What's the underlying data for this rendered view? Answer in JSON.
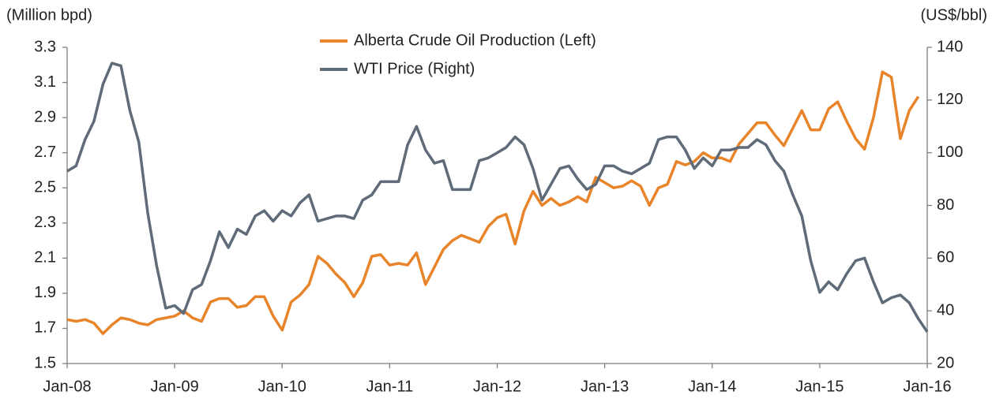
{
  "chart_data": {
    "type": "line",
    "y_label": "(Million bpd)",
    "y2_label": "(US$/bbl)",
    "categories": [
      "Jan-08",
      null,
      null,
      null,
      null,
      null,
      null,
      null,
      null,
      null,
      null,
      null,
      "Jan-09",
      null,
      null,
      null,
      null,
      null,
      null,
      null,
      null,
      null,
      null,
      null,
      "Jan-10",
      null,
      null,
      null,
      null,
      null,
      null,
      null,
      null,
      null,
      null,
      null,
      "Jan-11",
      null,
      null,
      null,
      null,
      null,
      null,
      null,
      null,
      null,
      null,
      null,
      "Jan-12",
      null,
      null,
      null,
      null,
      null,
      null,
      null,
      null,
      null,
      null,
      null,
      "Jan-13",
      null,
      null,
      null,
      null,
      null,
      null,
      null,
      null,
      null,
      null,
      null,
      "Jan-14",
      null,
      null,
      null,
      null,
      null,
      null,
      null,
      null,
      null,
      null,
      null,
      "Jan-15",
      null,
      null,
      null,
      null,
      null,
      null,
      null,
      null,
      null,
      null,
      null,
      "Jan-16"
    ],
    "series": [
      {
        "name": "Alberta Crude Oil Production (Left)",
        "color": "#e8842a",
        "axis": "y",
        "values": [
          1.75,
          1.74,
          1.75,
          1.73,
          1.67,
          1.72,
          1.76,
          1.75,
          1.73,
          1.72,
          1.75,
          1.76,
          1.77,
          1.8,
          1.76,
          1.74,
          1.85,
          1.87,
          1.87,
          1.82,
          1.83,
          1.88,
          1.88,
          1.77,
          1.69,
          1.85,
          1.89,
          1.95,
          2.11,
          2.07,
          2.01,
          1.96,
          1.88,
          1.96,
          2.11,
          2.12,
          2.06,
          2.07,
          2.06,
          2.13,
          1.95,
          2.05,
          2.15,
          2.2,
          2.23,
          2.21,
          2.19,
          2.28,
          2.33,
          2.35,
          2.18,
          2.37,
          2.48,
          2.4,
          2.44,
          2.4,
          2.42,
          2.45,
          2.42,
          2.56,
          2.53,
          2.5,
          2.51,
          2.54,
          2.51,
          2.4,
          2.5,
          2.52,
          2.65,
          2.63,
          2.65,
          2.7,
          2.67,
          2.67,
          2.65,
          2.75,
          2.81,
          2.87,
          2.87,
          2.8,
          2.74,
          2.84,
          2.94,
          2.83,
          2.83,
          2.95,
          2.99,
          2.88,
          2.78,
          2.72,
          2.9,
          3.16,
          3.13,
          2.78,
          2.94,
          3.02,
          null
        ]
      },
      {
        "name": "WTI Price (Right)",
        "color": "#5f6b78",
        "axis": "y2",
        "values": [
          93,
          95,
          105,
          112,
          126,
          134,
          133,
          116,
          104,
          77,
          57,
          41,
          42,
          39,
          48,
          50,
          59,
          70,
          64,
          71,
          69,
          76,
          78,
          74,
          78,
          76,
          81,
          84,
          74,
          75,
          76,
          76,
          75,
          82,
          84,
          89,
          89,
          89,
          103,
          110,
          101,
          96,
          97,
          86,
          86,
          86,
          97,
          98,
          100,
          102,
          106,
          103,
          94,
          82,
          88,
          94,
          95,
          90,
          86,
          88,
          95,
          95,
          93,
          92,
          94,
          96,
          105,
          106,
          106,
          101,
          94,
          98,
          95,
          101,
          101,
          102,
          102,
          105,
          103,
          97,
          93,
          84,
          76,
          59,
          47,
          51,
          48,
          54,
          59,
          60,
          51,
          43,
          45,
          46,
          43,
          37,
          32
        ]
      }
    ],
    "ylim": [
      1.5,
      3.3
    ],
    "yticks": [
      1.5,
      1.7,
      1.9,
      2.1,
      2.3,
      2.5,
      2.7,
      2.9,
      3.1,
      3.3
    ],
    "y2lim": [
      20,
      140
    ],
    "y2ticks": [
      20,
      40,
      60,
      80,
      100,
      120,
      140
    ],
    "grid": false,
    "legend": "top"
  }
}
